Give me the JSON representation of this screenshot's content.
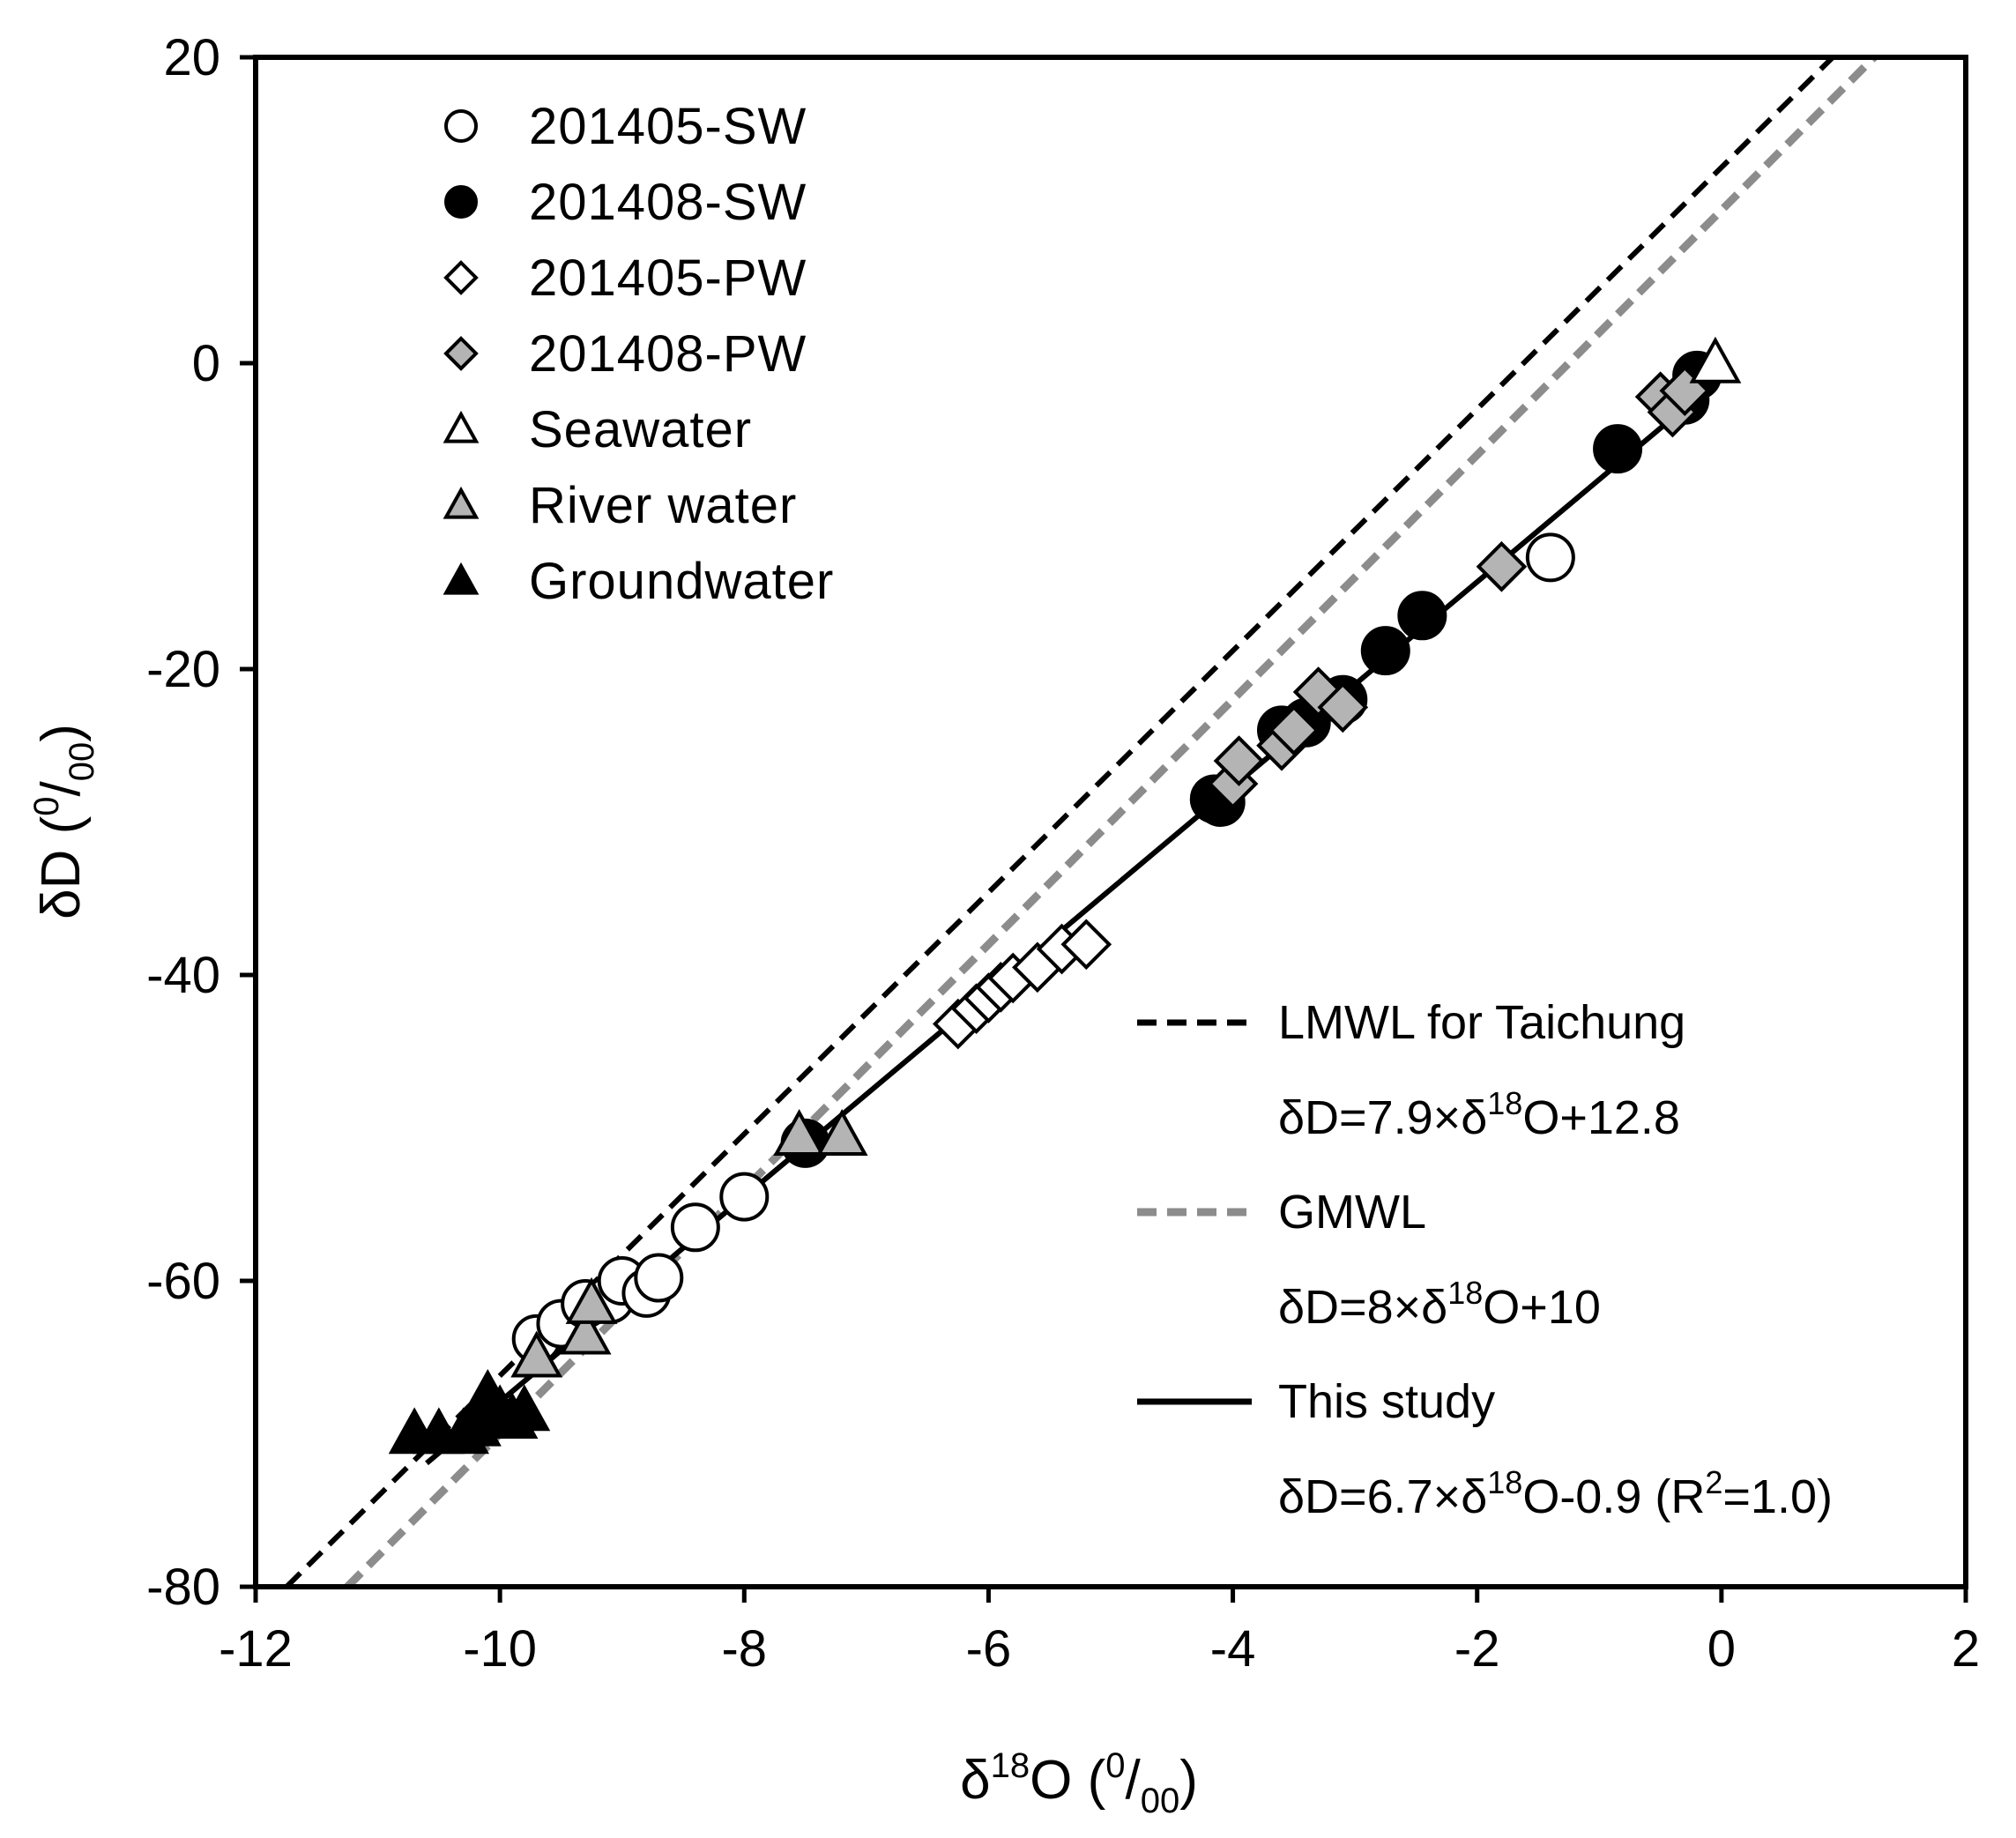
{
  "chart_data": {
    "type": "scatter",
    "xlabel": {
      "base": "δ",
      "sup": "18",
      "main": "O (",
      "unit_sup": "0",
      "unit_slash": "/",
      "unit_sub": "00",
      "close": ")"
    },
    "ylabel": {
      "main": "δD (",
      "unit_sup": "0",
      "unit_slash": "/",
      "unit_sub": "00",
      "close": ")"
    },
    "xlim": [
      -12,
      2
    ],
    "ylim": [
      -80,
      20
    ],
    "xticks": [
      -12,
      -10,
      -8,
      -6,
      -4,
      -2,
      0,
      2
    ],
    "yticks": [
      -80,
      -60,
      -40,
      -20,
      0,
      20
    ],
    "xtick_labels": [
      "-12",
      "-10",
      "-8",
      "-6",
      "-4",
      "-2",
      "0",
      "2"
    ],
    "ytick_labels": [
      "-80",
      "-60",
      "-40",
      "-20",
      "0",
      "20"
    ],
    "series": [
      {
        "name": "201405-SW",
        "marker": "circle",
        "fill": "#ffffff",
        "stroke": "#000000",
        "points": [
          [
            -9.7,
            -63.8
          ],
          [
            -9.5,
            -62.8
          ],
          [
            -9.3,
            -61.5
          ],
          [
            -9.1,
            -61.2
          ],
          [
            -9.0,
            -60.0
          ],
          [
            -8.8,
            -60.8
          ],
          [
            -8.7,
            -59.8
          ],
          [
            -8.4,
            -56.5
          ],
          [
            -8.0,
            -54.5
          ],
          [
            -1.4,
            -12.7
          ]
        ]
      },
      {
        "name": "201408-SW",
        "marker": "circle",
        "fill": "#000000",
        "stroke": "#000000",
        "points": [
          [
            -7.5,
            -51.0
          ],
          [
            -4.15,
            -28.5
          ],
          [
            -4.1,
            -28.7
          ],
          [
            -3.6,
            -24.0
          ],
          [
            -3.4,
            -23.5
          ],
          [
            -3.1,
            -22.0
          ],
          [
            -2.75,
            -18.8
          ],
          [
            -2.45,
            -16.5
          ],
          [
            -0.85,
            -5.6
          ],
          [
            -0.3,
            -2.4
          ],
          [
            -0.2,
            -0.8
          ]
        ]
      },
      {
        "name": "201405-PW",
        "marker": "diamond",
        "fill": "#ffffff",
        "stroke": "#000000",
        "points": [
          [
            -6.25,
            -43.2
          ],
          [
            -6.1,
            -42.2
          ],
          [
            -6.0,
            -41.5
          ],
          [
            -5.9,
            -40.8
          ],
          [
            -5.8,
            -40.2
          ],
          [
            -5.6,
            -39.5
          ],
          [
            -5.4,
            -38.3
          ],
          [
            -5.2,
            -38.0
          ]
        ]
      },
      {
        "name": "201408-PW",
        "marker": "diamond",
        "fill": "#b4b4b4",
        "stroke": "#000000",
        "points": [
          [
            -4.0,
            -27.5
          ],
          [
            -3.95,
            -26.0
          ],
          [
            -3.6,
            -25.0
          ],
          [
            -3.5,
            -24.0
          ],
          [
            -3.3,
            -21.5
          ],
          [
            -3.1,
            -22.5
          ],
          [
            -1.8,
            -13.3
          ],
          [
            -0.5,
            -2.2
          ],
          [
            -0.4,
            -3.2
          ],
          [
            -0.3,
            -1.8
          ]
        ]
      },
      {
        "name": "Seawater",
        "marker": "triangle",
        "fill": "#ffffff",
        "stroke": "#000000",
        "points": [
          [
            -0.05,
            0.0
          ]
        ]
      },
      {
        "name": "River water",
        "marker": "triangle",
        "fill": "#b4b4b4",
        "stroke": "#000000",
        "points": [
          [
            -9.7,
            -65.0
          ],
          [
            -9.3,
            -63.5
          ],
          [
            -9.25,
            -61.5
          ],
          [
            -7.55,
            -50.5
          ],
          [
            -7.2,
            -50.5
          ]
        ]
      },
      {
        "name": "Groundwater",
        "marker": "triangle",
        "fill": "#000000",
        "stroke": "#000000",
        "points": [
          [
            -10.7,
            -70.0
          ],
          [
            -10.5,
            -70.0
          ],
          [
            -10.3,
            -70.0
          ],
          [
            -10.2,
            -69.5
          ],
          [
            -10.1,
            -67.5
          ],
          [
            -10.0,
            -68.5
          ],
          [
            -9.9,
            -69.0
          ],
          [
            -9.8,
            -68.5
          ]
        ]
      }
    ],
    "lines": [
      {
        "name": "LMWL for Taichung",
        "equation": "δD=7.9×δ18O+12.8",
        "slope": 7.9,
        "intercept": 12.8,
        "style": "dashed-black",
        "color": "#000000"
      },
      {
        "name": "GMWL",
        "equation": "δD=8×δ18O+10",
        "slope": 8,
        "intercept": 10,
        "style": "dashed-gray",
        "color": "#8c8c8c"
      },
      {
        "name": "This study",
        "equation": "δD=6.7×δ18O-0.9 (R2=1.0)",
        "slope": 6.7,
        "intercept": -0.9,
        "x_range": [
          -10.6,
          0
        ],
        "style": "solid-black",
        "color": "#000000"
      }
    ],
    "legend_markers": [
      "201405-SW",
      "201408-SW",
      "201405-PW",
      "201408-PW",
      "Seawater",
      "River water",
      "Groundwater"
    ],
    "line_legend": {
      "lmwl_label": "LMWL for Taichung",
      "lmwl_eq_pre": "δD=7.9×δ",
      "lmwl_eq_sup": "18",
      "lmwl_eq_post": "O+12.8",
      "gmwl_label": "GMWL",
      "gmwl_eq_pre": "δD=8×δ",
      "gmwl_eq_sup": "18",
      "gmwl_eq_post": "O+10",
      "study_label": "This study",
      "study_eq_pre": "δD=6.7×δ",
      "study_eq_sup": "18",
      "study_eq_mid": "O-0.9 (R",
      "study_eq_sup2": "2",
      "study_eq_post": "=1.0)"
    }
  }
}
